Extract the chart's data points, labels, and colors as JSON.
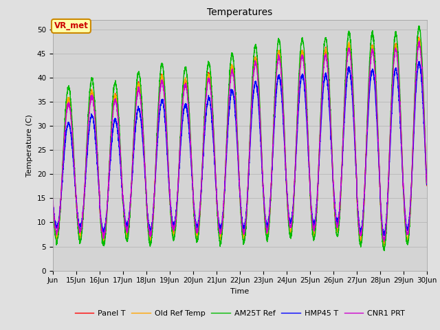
{
  "title": "Temperatures",
  "xlabel": "Time",
  "ylabel": "Temperature (C)",
  "ylim": [
    0,
    52
  ],
  "yticks": [
    0,
    5,
    10,
    15,
    20,
    25,
    30,
    35,
    40,
    45,
    50
  ],
  "start_day": 14,
  "end_day": 30,
  "n_points": 3840,
  "series_colors": {
    "Panel T": "#ff0000",
    "Old Ref Temp": "#ffa500",
    "AM25T Ref": "#00bb00",
    "HMP45 T": "#0000ff",
    "CNR1 PRT": "#cc00cc"
  },
  "series_order": [
    "Panel T",
    "Old Ref Temp",
    "AM25T Ref",
    "HMP45 T",
    "CNR1 PRT"
  ],
  "annotation_text": "VR_met",
  "bg_color": "#e0e0e0",
  "plot_bg_color": "#d4d4d4",
  "linewidth": 1.0,
  "title_fontsize": 10,
  "label_fontsize": 8,
  "tick_fontsize": 7.5,
  "legend_fontsize": 8
}
